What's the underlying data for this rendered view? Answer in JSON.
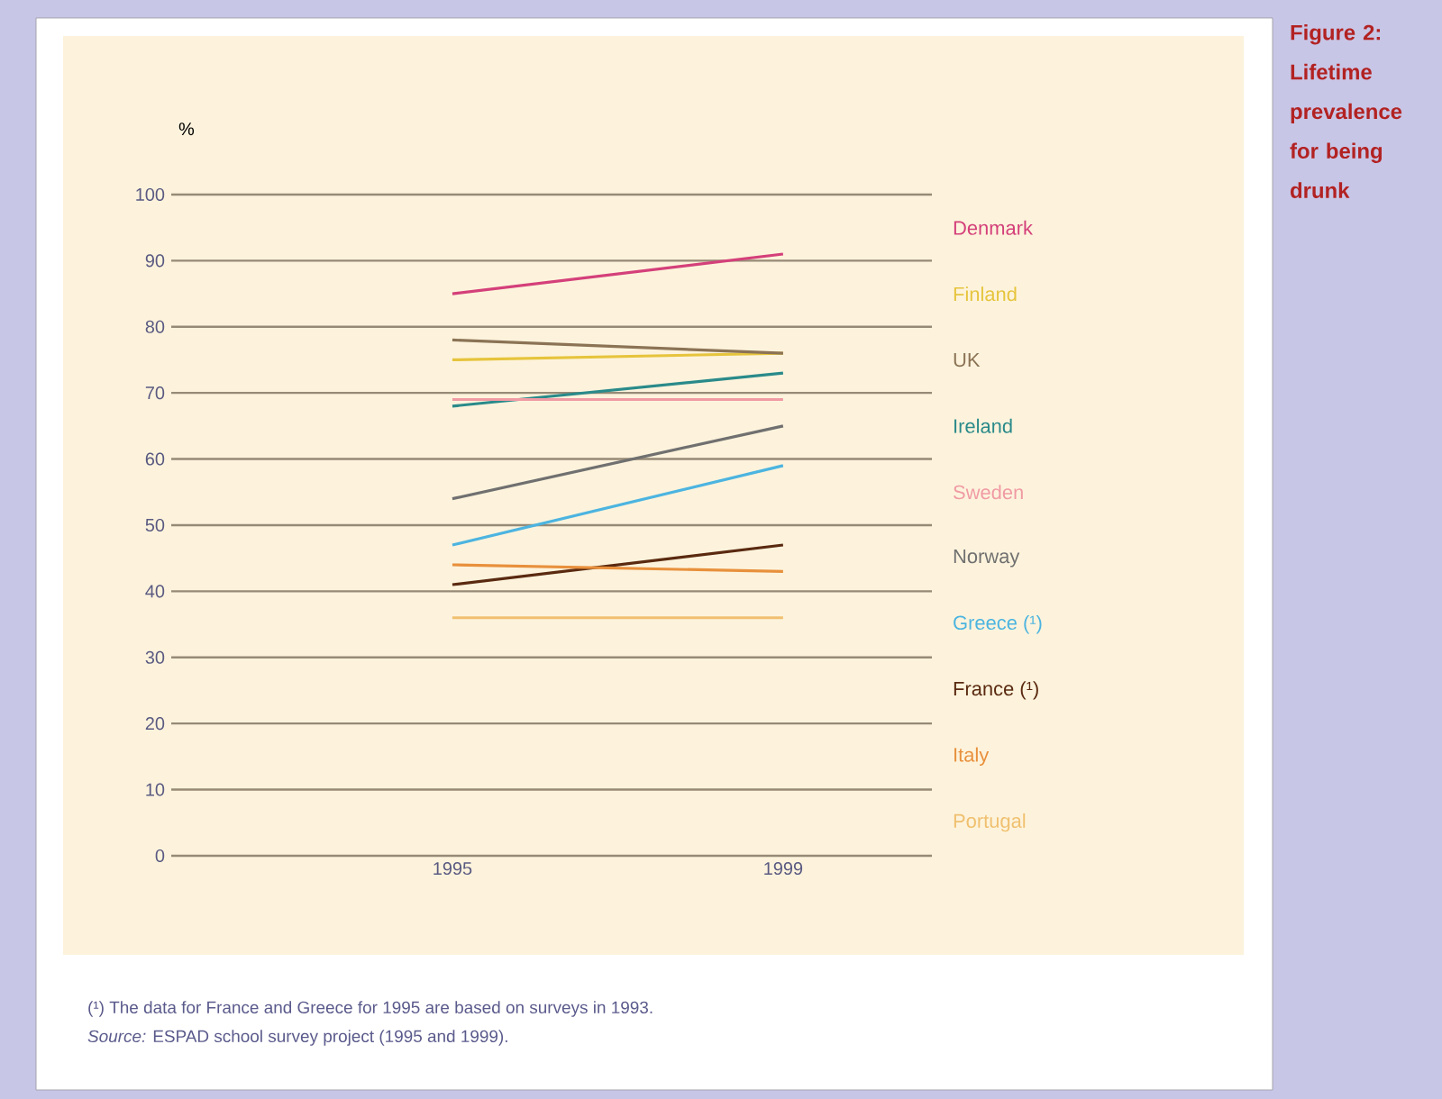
{
  "chart_data": {
    "type": "line",
    "title": "Figure 2: Lifetime prevalence for being drunk",
    "ylabel": "%",
    "categories": [
      "1995",
      "1999"
    ],
    "series": [
      {
        "name": "Denmark",
        "color": "#d4407a",
        "values": [
          85,
          91
        ]
      },
      {
        "name": "Finland",
        "color": "#e6c43c",
        "values": [
          75,
          76
        ]
      },
      {
        "name": "UK",
        "color": "#8b7355",
        "values": [
          78,
          76
        ]
      },
      {
        "name": "Ireland",
        "color": "#2a8a8a",
        "values": [
          68,
          73
        ]
      },
      {
        "name": "Sweden",
        "color": "#f09aa4",
        "values": [
          69,
          69
        ]
      },
      {
        "name": "Norway",
        "color": "#707070",
        "values": [
          54,
          65
        ]
      },
      {
        "name": "Greece (¹)",
        "color": "#4cb4e0",
        "values": [
          47,
          59
        ]
      },
      {
        "name": "France (¹)",
        "color": "#5a2a10",
        "values": [
          41,
          47
        ]
      },
      {
        "name": "Italy",
        "color": "#e8903c",
        "values": [
          44,
          43
        ]
      },
      {
        "name": "Portugal",
        "color": "#f0c070",
        "values": [
          36,
          36
        ]
      }
    ],
    "ylim": [
      0,
      100
    ],
    "yticks": [
      0,
      10,
      20,
      30,
      40,
      50,
      60,
      70,
      80,
      90,
      100
    ],
    "grid": "y",
    "legend": "right",
    "line_style": "solid",
    "annotations": [
      "(¹) The data for France and Greece for 1995 are based on surveys in 1993.",
      "*Source:* ESPAD school survey project (1995 and 1999)."
    ]
  }
}
